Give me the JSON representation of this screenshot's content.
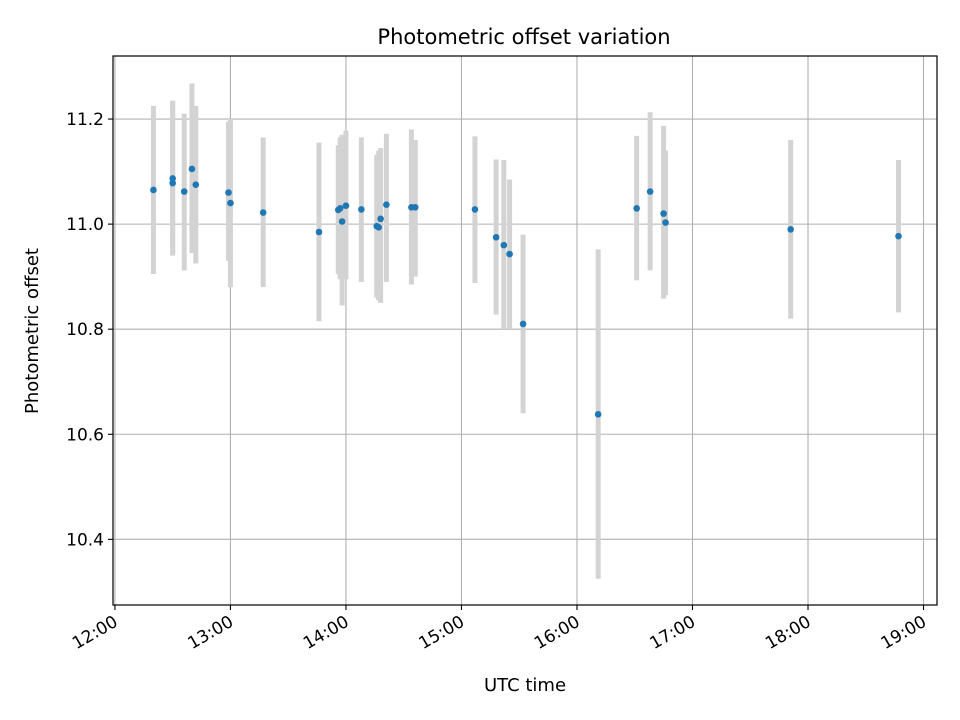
{
  "chart_data": {
    "type": "scatter",
    "title": "Photometric offset variation",
    "xlabel": "UTC time",
    "ylabel": "Photometric offset",
    "grid": true,
    "xlim": [
      "11:59",
      "19:07"
    ],
    "ylim": [
      10.275,
      11.32
    ],
    "xticks": [
      "12:00",
      "13:00",
      "14:00",
      "15:00",
      "16:00",
      "17:00",
      "18:00",
      "19:00"
    ],
    "yticks": [
      "10.4",
      "10.6",
      "10.8",
      "11.0",
      "11.2"
    ],
    "colors": {
      "marker": "#1f77b4",
      "errorbar": "#d3d3d3",
      "grid": "#b0b0b0"
    },
    "points": [
      {
        "x": "12:20",
        "y": 11.065,
        "ylow": 10.905,
        "yhigh": 11.225
      },
      {
        "x": "12:30",
        "y": 11.078,
        "ylow": 10.94,
        "yhigh": 11.235
      },
      {
        "x": "12:30",
        "y": 11.087,
        "ylow": 10.945,
        "yhigh": 11.232
      },
      {
        "x": "12:36",
        "y": 11.062,
        "ylow": 10.912,
        "yhigh": 11.21
      },
      {
        "x": "12:40",
        "y": 11.105,
        "ylow": 10.945,
        "yhigh": 11.268
      },
      {
        "x": "12:42",
        "y": 11.075,
        "ylow": 10.925,
        "yhigh": 11.225
      },
      {
        "x": "12:59",
        "y": 11.06,
        "ylow": 10.93,
        "yhigh": 11.195
      },
      {
        "x": "13:00",
        "y": 11.04,
        "ylow": 10.88,
        "yhigh": 11.2
      },
      {
        "x": "13:17",
        "y": 11.022,
        "ylow": 10.88,
        "yhigh": 11.165
      },
      {
        "x": "13:46",
        "y": 10.985,
        "ylow": 10.815,
        "yhigh": 11.155
      },
      {
        "x": "13:56",
        "y": 11.027,
        "ylow": 10.905,
        "yhigh": 11.15
      },
      {
        "x": "13:57",
        "y": 11.03,
        "ylow": 10.895,
        "yhigh": 11.165
      },
      {
        "x": "13:58",
        "y": 11.005,
        "ylow": 10.845,
        "yhigh": 11.17
      },
      {
        "x": "14:00",
        "y": 11.035,
        "ylow": 10.895,
        "yhigh": 11.178
      },
      {
        "x": "14:08",
        "y": 11.028,
        "ylow": 10.89,
        "yhigh": 11.165
      },
      {
        "x": "14:16",
        "y": 10.996,
        "ylow": 10.86,
        "yhigh": 11.132
      },
      {
        "x": "14:17",
        "y": 10.994,
        "ylow": 10.855,
        "yhigh": 11.14
      },
      {
        "x": "14:18",
        "y": 11.01,
        "ylow": 10.85,
        "yhigh": 11.145
      },
      {
        "x": "14:21",
        "y": 11.037,
        "ylow": 10.89,
        "yhigh": 11.172
      },
      {
        "x": "14:34",
        "y": 11.032,
        "ylow": 10.885,
        "yhigh": 11.18
      },
      {
        "x": "14:36",
        "y": 11.032,
        "ylow": 10.9,
        "yhigh": 11.16
      },
      {
        "x": "15:07",
        "y": 11.028,
        "ylow": 10.888,
        "yhigh": 11.167
      },
      {
        "x": "15:18",
        "y": 10.975,
        "ylow": 10.828,
        "yhigh": 11.123
      },
      {
        "x": "15:22",
        "y": 10.96,
        "ylow": 10.8,
        "yhigh": 11.122
      },
      {
        "x": "15:25",
        "y": 10.943,
        "ylow": 10.8,
        "yhigh": 11.085
      },
      {
        "x": "15:32",
        "y": 10.81,
        "ylow": 10.64,
        "yhigh": 10.98
      },
      {
        "x": "16:11",
        "y": 10.638,
        "ylow": 10.325,
        "yhigh": 10.952
      },
      {
        "x": "16:31",
        "y": 11.03,
        "ylow": 10.893,
        "yhigh": 11.168
      },
      {
        "x": "16:38",
        "y": 11.062,
        "ylow": 10.912,
        "yhigh": 11.213
      },
      {
        "x": "16:45",
        "y": 11.02,
        "ylow": 10.858,
        "yhigh": 11.187
      },
      {
        "x": "16:46",
        "y": 11.003,
        "ylow": 10.865,
        "yhigh": 11.14
      },
      {
        "x": "17:51",
        "y": 10.99,
        "ylow": 10.82,
        "yhigh": 11.16
      },
      {
        "x": "18:47",
        "y": 10.977,
        "ylow": 10.832,
        "yhigh": 11.122
      }
    ]
  }
}
